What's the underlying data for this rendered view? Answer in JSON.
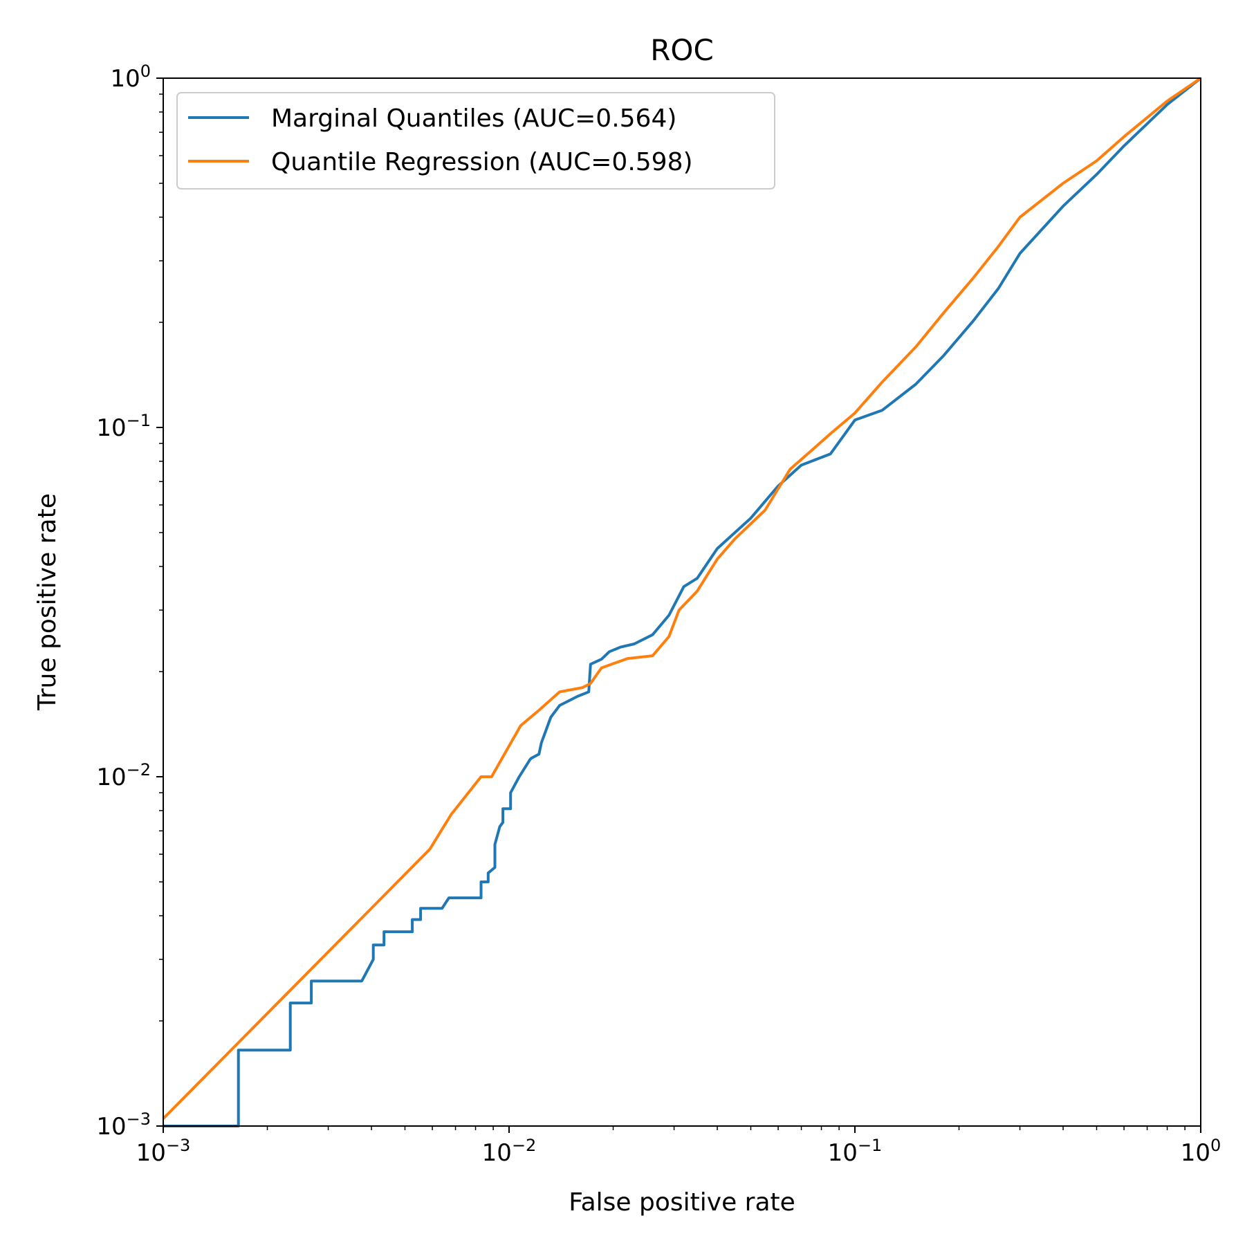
{
  "chart_data": {
    "type": "line",
    "title": "ROC",
    "xlabel": "False positive rate",
    "ylabel": "True positive rate",
    "xscale": "log",
    "yscale": "log",
    "xlim": [
      0.001,
      1
    ],
    "ylim": [
      0.001,
      1
    ],
    "grid": false,
    "legend_position": "top-left",
    "x_ticks": [
      {
        "base": "10",
        "exp": "−3",
        "value": 0.001
      },
      {
        "base": "10",
        "exp": "−2",
        "value": 0.01
      },
      {
        "base": "10",
        "exp": "−1",
        "value": 0.1
      },
      {
        "base": "10",
        "exp": "0",
        "value": 1
      }
    ],
    "y_ticks": [
      {
        "base": "10",
        "exp": "−3",
        "value": 0.001
      },
      {
        "base": "10",
        "exp": "−2",
        "value": 0.01
      },
      {
        "base": "10",
        "exp": "−1",
        "value": 0.1
      },
      {
        "base": "10",
        "exp": "0",
        "value": 1
      }
    ],
    "series": [
      {
        "name": "Marginal Quantiles (AUC=0.564)",
        "color": "#1f77b4",
        "x": [
          0.001,
          0.00165,
          0.00165,
          0.00233,
          0.00233,
          0.00268,
          0.00268,
          0.00375,
          0.00405,
          0.00405,
          0.00435,
          0.00435,
          0.00525,
          0.00525,
          0.00555,
          0.00555,
          0.0064,
          0.0067,
          0.0067,
          0.0083,
          0.0083,
          0.0087,
          0.0087,
          0.0091,
          0.0091,
          0.0094,
          0.0096,
          0.0096,
          0.0101,
          0.0101,
          0.0107,
          0.0115,
          0.0116,
          0.0122,
          0.0124,
          0.0132,
          0.014,
          0.0158,
          0.017,
          0.0172,
          0.0185,
          0.0195,
          0.021,
          0.023,
          0.026,
          0.029,
          0.032,
          0.035,
          0.04,
          0.05,
          0.06,
          0.07,
          0.085,
          0.1,
          0.12,
          0.15,
          0.18,
          0.22,
          0.26,
          0.3,
          0.4,
          0.5,
          0.6,
          0.8,
          1.0
        ],
        "y": [
          0.001,
          0.001,
          0.00165,
          0.00165,
          0.00225,
          0.00225,
          0.0026,
          0.0026,
          0.003,
          0.0033,
          0.0033,
          0.0036,
          0.0036,
          0.0039,
          0.0039,
          0.0042,
          0.0042,
          0.0045,
          0.0045,
          0.0045,
          0.005,
          0.005,
          0.0053,
          0.0055,
          0.0064,
          0.0072,
          0.0074,
          0.0081,
          0.0081,
          0.009,
          0.01,
          0.0112,
          0.0113,
          0.0116,
          0.0125,
          0.0148,
          0.016,
          0.017,
          0.0175,
          0.021,
          0.0217,
          0.0228,
          0.0235,
          0.024,
          0.0255,
          0.029,
          0.035,
          0.037,
          0.045,
          0.055,
          0.068,
          0.078,
          0.084,
          0.105,
          0.112,
          0.133,
          0.16,
          0.202,
          0.25,
          0.315,
          0.43,
          0.53,
          0.64,
          0.84,
          1.0
        ]
      },
      {
        "name": "Quantile Regression (AUC=0.598)",
        "color": "#ff7f0e",
        "x": [
          0.001,
          0.0059,
          0.0068,
          0.0083,
          0.0089,
          0.0108,
          0.0122,
          0.014,
          0.0163,
          0.0172,
          0.0185,
          0.022,
          0.026,
          0.029,
          0.031,
          0.035,
          0.04,
          0.045,
          0.055,
          0.065,
          0.075,
          0.085,
          0.1,
          0.12,
          0.15,
          0.18,
          0.22,
          0.26,
          0.3,
          0.4,
          0.5,
          0.6,
          0.8,
          1.0
        ],
        "y": [
          0.00105,
          0.0062,
          0.0078,
          0.01,
          0.01,
          0.014,
          0.0155,
          0.0175,
          0.018,
          0.0185,
          0.0205,
          0.0218,
          0.0222,
          0.0252,
          0.03,
          0.034,
          0.042,
          0.048,
          0.058,
          0.076,
          0.086,
          0.096,
          0.11,
          0.135,
          0.17,
          0.212,
          0.268,
          0.33,
          0.4,
          0.5,
          0.58,
          0.68,
          0.86,
          1.0
        ]
      }
    ]
  }
}
